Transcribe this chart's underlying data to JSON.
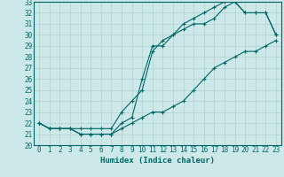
{
  "xlabel": "Humidex (Indice chaleur)",
  "xlim": [
    -0.5,
    23.5
  ],
  "ylim": [
    20,
    33
  ],
  "xticks": [
    0,
    1,
    2,
    3,
    4,
    5,
    6,
    7,
    8,
    9,
    10,
    11,
    12,
    13,
    14,
    15,
    16,
    17,
    18,
    19,
    20,
    21,
    22,
    23
  ],
  "yticks": [
    20,
    21,
    22,
    23,
    24,
    25,
    26,
    27,
    28,
    29,
    30,
    31,
    32,
    33
  ],
  "background_color": "#cce8e8",
  "grid_color": "#b0d0d0",
  "line_color": "#006666",
  "line1_x": [
    0,
    1,
    2,
    3,
    4,
    5,
    6,
    7,
    8,
    9,
    10,
    11,
    12,
    13,
    14,
    15,
    16,
    17,
    18,
    19,
    20,
    21,
    22,
    23
  ],
  "line1_y": [
    22.0,
    21.5,
    21.5,
    21.5,
    21.0,
    21.0,
    21.0,
    21.0,
    21.5,
    22.0,
    22.5,
    23.0,
    23.0,
    23.5,
    24.0,
    25.0,
    26.0,
    27.0,
    27.5,
    28.0,
    28.5,
    28.5,
    29.0,
    29.5
  ],
  "line2_x": [
    0,
    1,
    2,
    3,
    4,
    5,
    6,
    7,
    8,
    9,
    10,
    11,
    12,
    13,
    14,
    15,
    16,
    17,
    18,
    19,
    20,
    21,
    22,
    23
  ],
  "line2_y": [
    22.0,
    21.5,
    21.5,
    21.5,
    21.0,
    21.0,
    21.0,
    21.0,
    22.0,
    22.5,
    26.0,
    29.0,
    29.0,
    30.0,
    30.5,
    31.0,
    31.0,
    31.5,
    32.5,
    33.0,
    32.0,
    32.0,
    32.0,
    30.0
  ],
  "line3_x": [
    0,
    1,
    2,
    3,
    4,
    5,
    6,
    7,
    8,
    9,
    10,
    11,
    12,
    13,
    14,
    15,
    16,
    17,
    18,
    19,
    20,
    21,
    22,
    23
  ],
  "line3_y": [
    22.0,
    21.5,
    21.5,
    21.5,
    21.5,
    21.5,
    21.5,
    21.5,
    23.0,
    24.0,
    25.0,
    28.5,
    29.5,
    30.0,
    31.0,
    31.5,
    32.0,
    32.5,
    33.0,
    33.0,
    32.0,
    32.0,
    32.0,
    30.0
  ]
}
